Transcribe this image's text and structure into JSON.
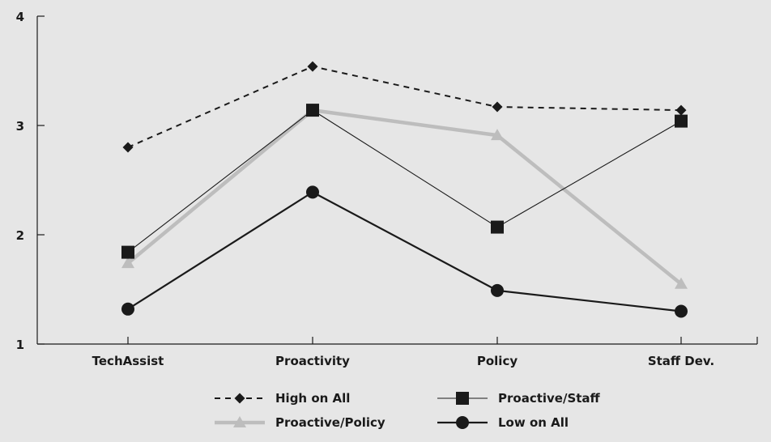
{
  "chart_data": {
    "type": "line",
    "categories": [
      "TechAssist",
      "Proactivity",
      "Policy",
      "Staff Dev."
    ],
    "ylim": [
      1,
      4
    ],
    "yticks": [
      1,
      2,
      3,
      4
    ],
    "grid": false,
    "legend_position": "bottom",
    "series": [
      {
        "name": "High on All",
        "values": [
          2.8,
          3.54,
          3.17,
          3.14
        ],
        "color": "#1a1a1a",
        "line_style": "dashed",
        "marker": "diamond"
      },
      {
        "name": "Proactive/Staff",
        "values": [
          1.84,
          3.14,
          2.07,
          3.04
        ],
        "color": "#1a1a1a",
        "line_style": "thin",
        "marker": "square"
      },
      {
        "name": "Proactive/Policy",
        "values": [
          1.74,
          3.14,
          2.91,
          1.55
        ],
        "color": "#bdbdbd",
        "line_style": "thick",
        "marker": "triangle"
      },
      {
        "name": "Low on All",
        "values": [
          1.32,
          2.39,
          1.49,
          1.3
        ],
        "color": "#1a1a1a",
        "line_style": "solid",
        "marker": "circle"
      }
    ]
  }
}
